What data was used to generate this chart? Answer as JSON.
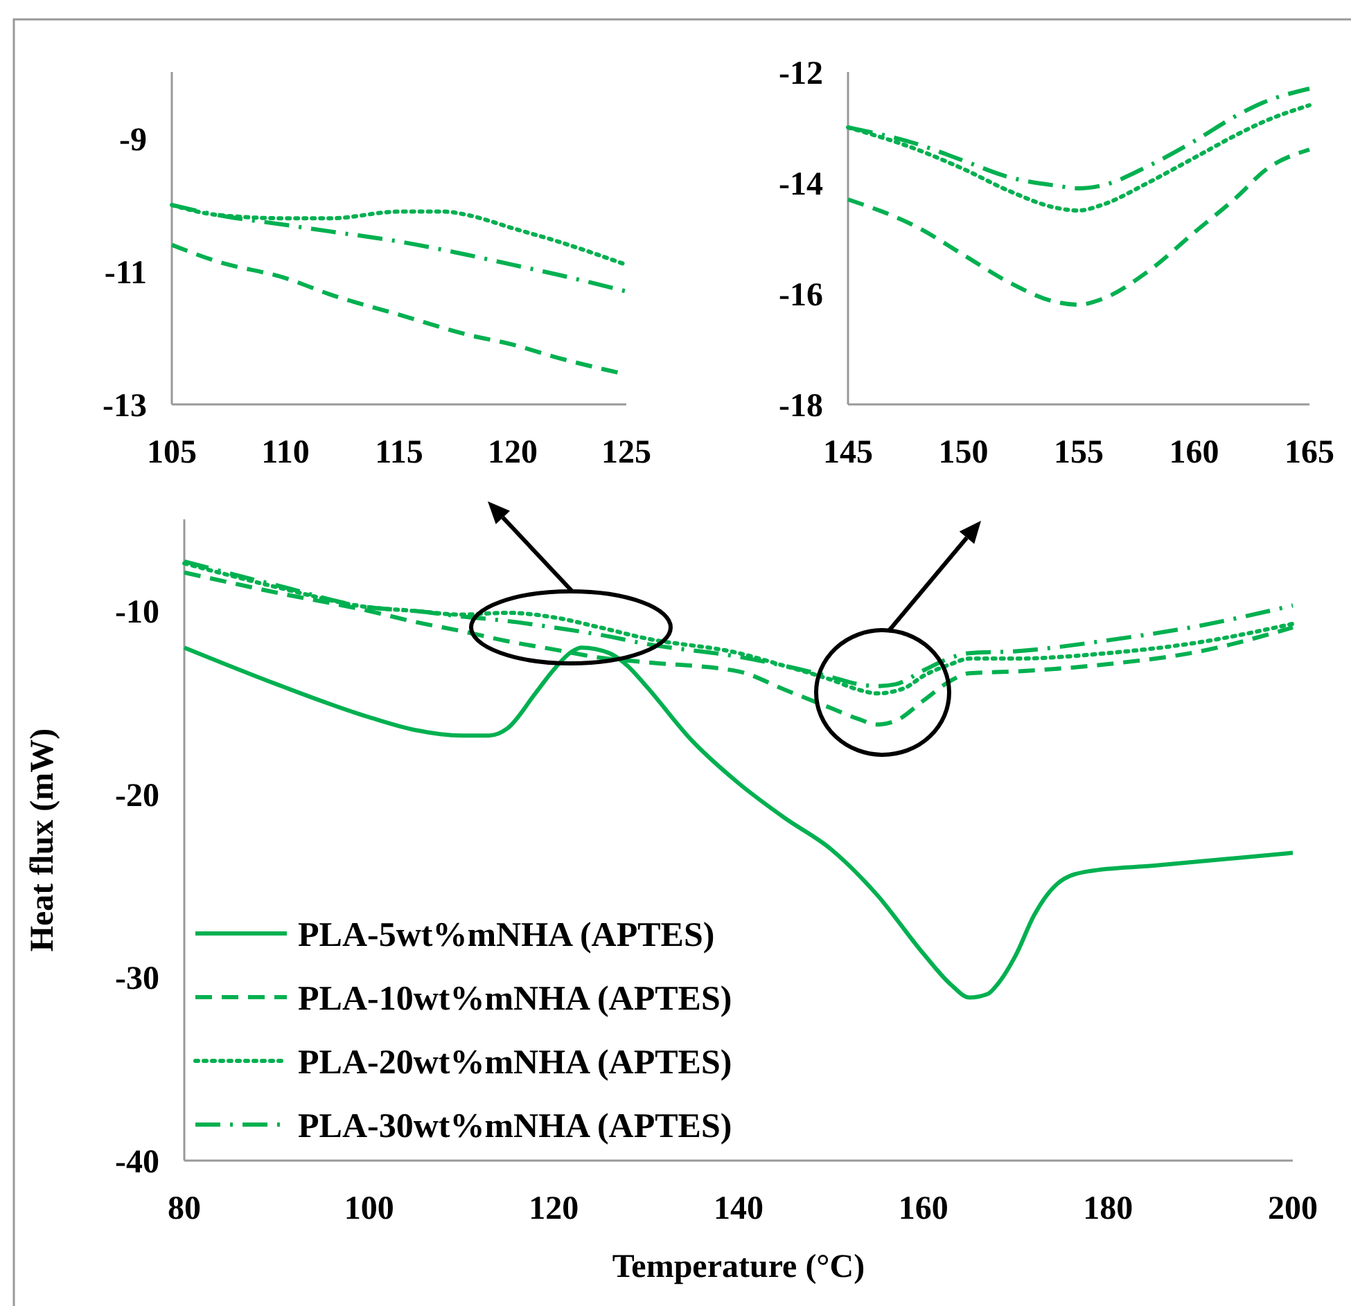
{
  "chart_data": [
    {
      "type": "line",
      "xlim": [
        105,
        125
      ],
      "ylim": [
        -13,
        -8
      ],
      "xticks": [
        105,
        110,
        115,
        120,
        125
      ],
      "yticks": [
        -9,
        -11,
        -13
      ],
      "series": [
        {
          "color": "#00b050",
          "line_style": "dashed",
          "x": [
            105,
            107,
            110,
            112,
            115,
            118,
            120,
            122,
            125
          ],
          "values": [
            -10.6,
            -10.85,
            -11.1,
            -11.35,
            -11.65,
            -11.95,
            -12.1,
            -12.3,
            -12.55
          ]
        },
        {
          "color": "#00b050",
          "line_style": "dotted",
          "x": [
            105,
            107,
            110,
            112,
            115,
            117,
            118,
            120,
            122,
            125
          ],
          "values": [
            -10.0,
            -10.15,
            -10.2,
            -10.2,
            -10.1,
            -10.1,
            -10.15,
            -10.35,
            -10.55,
            -10.9
          ]
        },
        {
          "color": "#00b050",
          "line_style": "dashdot",
          "x": [
            105,
            107,
            110,
            112,
            115,
            118,
            120,
            122,
            125
          ],
          "values": [
            -10.0,
            -10.15,
            -10.3,
            -10.4,
            -10.55,
            -10.75,
            -10.9,
            -11.05,
            -11.3
          ]
        }
      ]
    },
    {
      "type": "line",
      "xlim": [
        145,
        165
      ],
      "ylim": [
        -18,
        -12
      ],
      "xticks": [
        145,
        150,
        155,
        160,
        165
      ],
      "yticks": [
        -12,
        -14,
        -16,
        -18
      ],
      "series": [
        {
          "color": "#00b050",
          "line_style": "dashed",
          "x": [
            145,
            148,
            150,
            152,
            154,
            155,
            156,
            158,
            160,
            162,
            163,
            165
          ],
          "values": [
            -14.3,
            -14.8,
            -15.3,
            -15.8,
            -16.15,
            -16.2,
            -16.1,
            -15.6,
            -14.9,
            -14.2,
            -13.8,
            -13.4
          ]
        },
        {
          "color": "#00b050",
          "line_style": "dotted",
          "x": [
            145,
            148,
            150,
            152,
            154,
            155,
            156,
            158,
            160,
            162,
            163,
            165
          ],
          "values": [
            -13.0,
            -13.4,
            -13.75,
            -14.15,
            -14.45,
            -14.5,
            -14.4,
            -14.0,
            -13.55,
            -13.1,
            -12.9,
            -12.6
          ]
        },
        {
          "color": "#00b050",
          "line_style": "dashdot",
          "x": [
            145,
            148,
            150,
            152,
            154,
            155,
            156,
            158,
            160,
            162,
            163,
            165
          ],
          "values": [
            -13.0,
            -13.3,
            -13.6,
            -13.9,
            -14.05,
            -14.1,
            -14.05,
            -13.7,
            -13.25,
            -12.75,
            -12.55,
            -12.3
          ]
        }
      ]
    },
    {
      "type": "line",
      "xlabel": "Temperature (°C)",
      "ylabel": "Heat flux (mW)",
      "xlim": [
        80,
        200
      ],
      "ylim": [
        -40,
        -5
      ],
      "xticks": [
        80,
        100,
        120,
        140,
        160,
        180,
        200
      ],
      "yticks": [
        -10,
        -20,
        -30,
        -40
      ],
      "legend": "bottom left",
      "series": [
        {
          "name": "PLA-5wt%mNHA (APTES)",
          "color": "#00b050",
          "line_style": "solid",
          "x": [
            80,
            90,
            100,
            105,
            110,
            113,
            115,
            118,
            120,
            122,
            123,
            126,
            128,
            130,
            135,
            140,
            145,
            150,
            155,
            160,
            163,
            165,
            167,
            168,
            170,
            172,
            175,
            178,
            185,
            200
          ],
          "values": [
            -12.0,
            -14.0,
            -15.8,
            -16.5,
            -16.8,
            -16.8,
            -16.4,
            -14.5,
            -13.2,
            -12.2,
            -12.0,
            -12.3,
            -13.0,
            -14.1,
            -17.1,
            -19.4,
            -21.3,
            -23.0,
            -25.5,
            -28.7,
            -30.4,
            -31.1,
            -30.9,
            -30.4,
            -28.8,
            -26.6,
            -24.7,
            -24.2,
            -23.9,
            -23.2
          ]
        },
        {
          "name": "PLA-10wt%mNHA (APTES)",
          "color": "#00b050",
          "line_style": "dashed",
          "x": [
            80,
            90,
            100,
            105,
            110,
            115,
            120,
            125,
            130,
            140,
            145,
            150,
            153,
            155,
            157,
            160,
            163,
            165,
            170,
            180,
            190,
            200
          ],
          "values": [
            -7.9,
            -9.0,
            -10.0,
            -10.6,
            -11.1,
            -11.65,
            -12.1,
            -12.55,
            -12.8,
            -13.3,
            -14.3,
            -15.3,
            -15.9,
            -16.2,
            -16.0,
            -14.9,
            -13.8,
            -13.4,
            -13.3,
            -12.9,
            -12.2,
            -10.9
          ]
        },
        {
          "name": "PLA-20wt%mNHA (APTES)",
          "color": "#00b050",
          "line_style": "dotted",
          "x": [
            80,
            90,
            100,
            105,
            110,
            115,
            120,
            125,
            130,
            140,
            145,
            150,
            153,
            155,
            158,
            160,
            163,
            165,
            170,
            180,
            190,
            200
          ],
          "values": [
            -7.4,
            -8.7,
            -9.8,
            -10.0,
            -10.2,
            -10.1,
            -10.35,
            -10.9,
            -11.5,
            -12.3,
            -13.0,
            -13.75,
            -14.3,
            -14.5,
            -14.2,
            -13.55,
            -12.9,
            -12.6,
            -12.6,
            -12.3,
            -11.7,
            -10.7
          ]
        },
        {
          "name": "PLA-30wt%mNHA (APTES)",
          "color": "#00b050",
          "line_style": "dashdot",
          "x": [
            80,
            90,
            100,
            105,
            110,
            115,
            120,
            125,
            130,
            140,
            145,
            150,
            153,
            155,
            157,
            160,
            163,
            165,
            170,
            180,
            190,
            200
          ],
          "values": [
            -7.3,
            -8.6,
            -9.8,
            -10.0,
            -10.3,
            -10.55,
            -10.9,
            -11.3,
            -11.8,
            -12.5,
            -13.0,
            -13.6,
            -14.0,
            -14.1,
            -14.0,
            -13.25,
            -12.55,
            -12.3,
            -12.2,
            -11.6,
            -10.8,
            -9.7
          ]
        }
      ]
    }
  ]
}
